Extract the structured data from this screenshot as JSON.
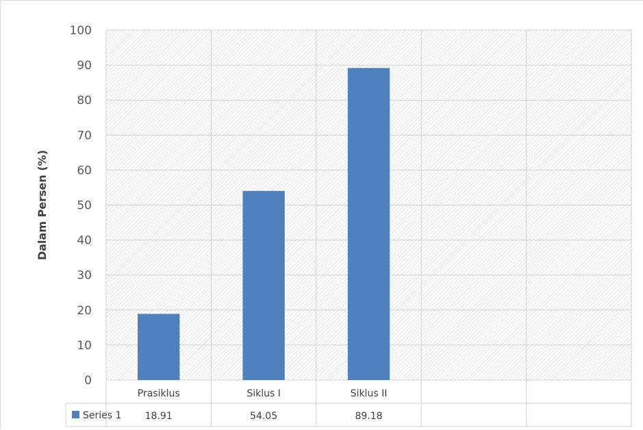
{
  "chart_data": {
    "type": "bar",
    "title": "",
    "xlabel": "",
    "ylabel": "Dalam Persen (%)",
    "ylim": [
      0,
      100
    ],
    "yticks": [
      0,
      10,
      20,
      30,
      40,
      50,
      60,
      70,
      80,
      90,
      100
    ],
    "categories": [
      "Prasiklus",
      "Siklus I",
      "Siklus II",
      "",
      ""
    ],
    "series": [
      {
        "name": "Series 1",
        "values": [
          18.91,
          54.05,
          89.18,
          null,
          null
        ]
      }
    ],
    "data_table": true,
    "legend_in_table": true,
    "grid": true,
    "plot_background": "hatched",
    "bar_color": "#4f81bd",
    "table_values": [
      "18.91",
      "54.05",
      "89.18",
      "",
      ""
    ]
  }
}
